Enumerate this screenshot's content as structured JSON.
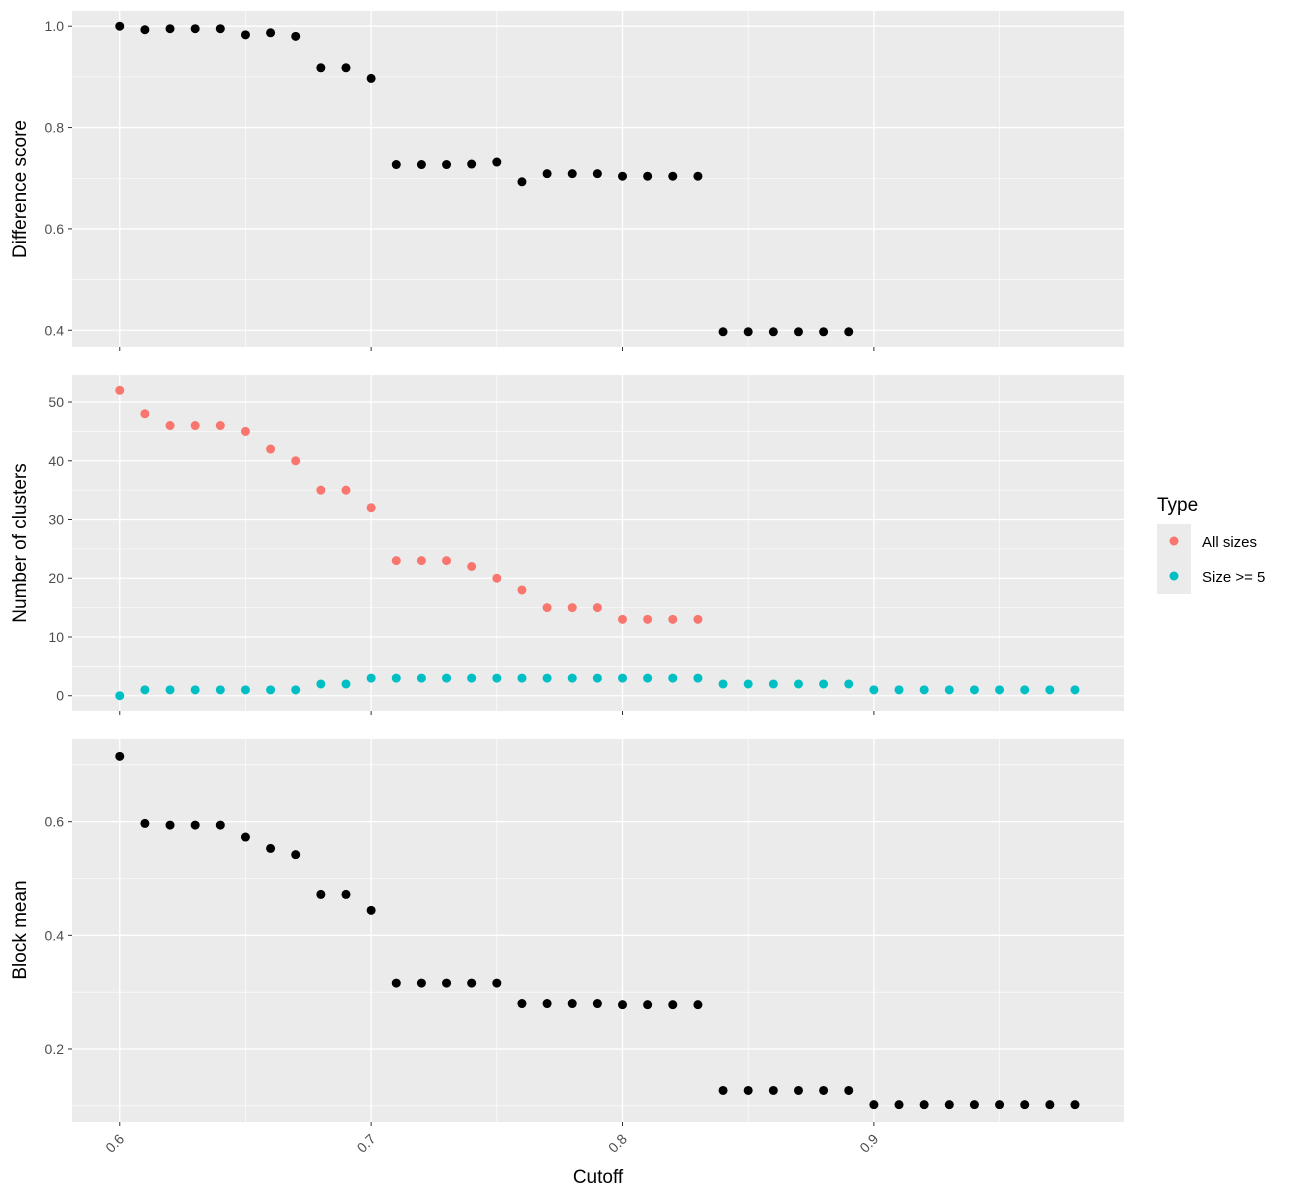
{
  "chart_data": {
    "type": "scatter",
    "xlabel": "Cutoff",
    "x_ticks": [
      0.6,
      0.7,
      0.8,
      0.9
    ],
    "x_tick_labels": [
      "0.6",
      "0.7",
      "0.8",
      "0.9"
    ],
    "xlim": [
      0.581,
      0.9995
    ],
    "grid": true,
    "legend": {
      "title": "Type",
      "placement": "right",
      "entries": [
        {
          "name": "All sizes",
          "color": "#F8766D"
        },
        {
          "name": "Size >= 5",
          "color": "#00BFC4"
        }
      ]
    },
    "panels": [
      {
        "ylabel": "Difference score",
        "ylim": [
          0.367,
          1.03
        ],
        "y_ticks": [
          0.4,
          0.6,
          0.8,
          1.0
        ],
        "y_tick_labels": [
          "0.4",
          "0.6",
          "0.8",
          "1.0"
        ],
        "series": [
          {
            "color": "#000000",
            "x": [
              0.6,
              0.61,
              0.62,
              0.63,
              0.64,
              0.65,
              0.66,
              0.67,
              0.68,
              0.69,
              0.7,
              0.71,
              0.72,
              0.73,
              0.74,
              0.75,
              0.76,
              0.77,
              0.78,
              0.79,
              0.8,
              0.81,
              0.82,
              0.83,
              0.84,
              0.85,
              0.86,
              0.87,
              0.88,
              0.89
            ],
            "y": [
              1.0,
              0.993,
              0.995,
              0.995,
              0.995,
              0.983,
              0.987,
              0.98,
              0.918,
              0.918,
              0.897,
              0.727,
              0.727,
              0.727,
              0.728,
              0.732,
              0.693,
              0.709,
              0.709,
              0.709,
              0.704,
              0.704,
              0.704,
              0.704,
              0.397,
              0.397,
              0.397,
              0.397,
              0.397,
              0.397
            ]
          }
        ]
      },
      {
        "ylabel": "Number of clusters",
        "ylim": [
          -2.6,
          54.6
        ],
        "y_ticks": [
          0,
          10,
          20,
          30,
          40,
          50
        ],
        "y_tick_labels": [
          "0",
          "10",
          "20",
          "30",
          "40",
          "50"
        ],
        "series": [
          {
            "name": "All sizes",
            "color": "#F8766D",
            "x": [
              0.6,
              0.61,
              0.62,
              0.63,
              0.64,
              0.65,
              0.66,
              0.67,
              0.68,
              0.69,
              0.7,
              0.71,
              0.72,
              0.73,
              0.74,
              0.75,
              0.76,
              0.77,
              0.78,
              0.79,
              0.8,
              0.81,
              0.82,
              0.83
            ],
            "y": [
              52,
              48,
              46,
              46,
              46,
              45,
              42,
              40,
              35,
              35,
              32,
              23,
              23,
              23,
              22,
              20,
              18,
              15,
              15,
              15,
              13,
              13,
              13,
              13
            ]
          },
          {
            "name": "Size >= 5",
            "color": "#00BFC4",
            "x": [
              0.6,
              0.61,
              0.62,
              0.63,
              0.64,
              0.65,
              0.66,
              0.67,
              0.68,
              0.69,
              0.7,
              0.71,
              0.72,
              0.73,
              0.74,
              0.75,
              0.76,
              0.77,
              0.78,
              0.79,
              0.8,
              0.81,
              0.82,
              0.83,
              0.84,
              0.85,
              0.86,
              0.87,
              0.88,
              0.89,
              0.9,
              0.91,
              0.92,
              0.93,
              0.94,
              0.95,
              0.96,
              0.97,
              0.98
            ],
            "y": [
              0,
              1,
              1,
              1,
              1,
              1,
              1,
              1,
              2,
              2,
              3,
              3,
              3,
              3,
              3,
              3,
              3,
              3,
              3,
              3,
              3,
              3,
              3,
              3,
              2,
              2,
              2,
              2,
              2,
              2,
              1,
              1,
              1,
              1,
              1,
              1,
              1,
              1,
              1
            ]
          }
        ]
      },
      {
        "ylabel": "Block mean",
        "ylim": [
          0.0715,
          0.7455
        ],
        "y_ticks": [
          0.2,
          0.4,
          0.6
        ],
        "y_tick_labels": [
          "0.2",
          "0.4",
          "0.6"
        ],
        "series": [
          {
            "color": "#000000",
            "x": [
              0.6,
              0.61,
              0.62,
              0.63,
              0.64,
              0.65,
              0.66,
              0.67,
              0.68,
              0.69,
              0.7,
              0.71,
              0.72,
              0.73,
              0.74,
              0.75,
              0.76,
              0.77,
              0.78,
              0.79,
              0.8,
              0.81,
              0.82,
              0.83,
              0.84,
              0.85,
              0.86,
              0.87,
              0.88,
              0.89,
              0.9,
              0.91,
              0.92,
              0.93,
              0.94,
              0.95,
              0.96,
              0.97,
              0.98
            ],
            "y": [
              0.715,
              0.597,
              0.594,
              0.594,
              0.594,
              0.573,
              0.553,
              0.542,
              0.472,
              0.472,
              0.444,
              0.316,
              0.316,
              0.316,
              0.316,
              0.316,
              0.28,
              0.28,
              0.28,
              0.28,
              0.278,
              0.278,
              0.278,
              0.278,
              0.127,
              0.127,
              0.127,
              0.127,
              0.127,
              0.127,
              0.102,
              0.102,
              0.102,
              0.102,
              0.102,
              0.102,
              0.102,
              0.102,
              0.102
            ]
          }
        ]
      }
    ]
  }
}
